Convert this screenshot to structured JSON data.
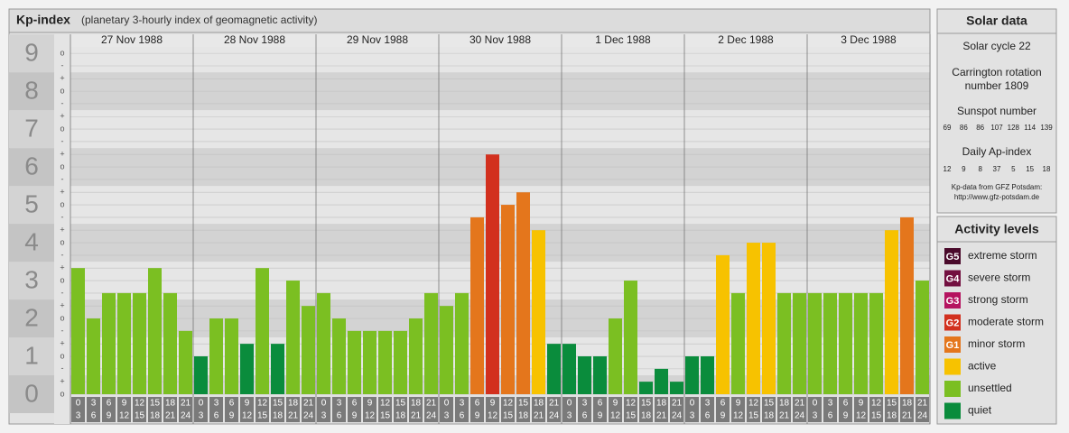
{
  "chart_data": {
    "type": "bar",
    "title": "Kp-index",
    "subtitle": "(planetary 3-hourly index of geomagnetic activity)",
    "ylim": [
      0,
      9.17
    ],
    "yticks": [
      0,
      1,
      2,
      3,
      4,
      5,
      6,
      7,
      8,
      9
    ],
    "minor_yticks": [
      {
        "value": 0,
        "label": "o"
      },
      {
        "value": 0.33,
        "label": "+"
      },
      {
        "value": 0.67,
        "label": "-"
      },
      {
        "value": 1,
        "label": "o"
      },
      {
        "value": 1.33,
        "label": "+"
      },
      {
        "value": 1.67,
        "label": "-"
      },
      {
        "value": 2,
        "label": "o"
      },
      {
        "value": 2.33,
        "label": "+"
      },
      {
        "value": 2.67,
        "label": "-"
      },
      {
        "value": 3,
        "label": "o"
      },
      {
        "value": 3.33,
        "label": "+"
      },
      {
        "value": 3.67,
        "label": "-"
      },
      {
        "value": 4,
        "label": "o"
      },
      {
        "value": 4.33,
        "label": "+"
      },
      {
        "value": 4.67,
        "label": "-"
      },
      {
        "value": 5,
        "label": "o"
      },
      {
        "value": 5.33,
        "label": "+"
      },
      {
        "value": 5.67,
        "label": "-"
      },
      {
        "value": 6,
        "label": "o"
      },
      {
        "value": 6.33,
        "label": "+"
      },
      {
        "value": 6.67,
        "label": "-"
      },
      {
        "value": 7,
        "label": "o"
      },
      {
        "value": 7.33,
        "label": "+"
      },
      {
        "value": 7.67,
        "label": "-"
      },
      {
        "value": 8,
        "label": "o"
      },
      {
        "value": 8.33,
        "label": "+"
      },
      {
        "value": 8.67,
        "label": "-"
      },
      {
        "value": 9,
        "label": "o"
      }
    ],
    "grid": true,
    "hours": [
      [
        0,
        3
      ],
      [
        3,
        6
      ],
      [
        6,
        9
      ],
      [
        9,
        12
      ],
      [
        12,
        15
      ],
      [
        15,
        18
      ],
      [
        18,
        21
      ],
      [
        21,
        24
      ]
    ],
    "days": [
      {
        "date": "27 Nov 1988",
        "values": [
          3.33,
          2,
          2.67,
          2.67,
          2.67,
          3.33,
          2.67,
          1.67
        ],
        "colors": [
          "#7bbf22",
          "#7bbf22",
          "#7bbf22",
          "#7bbf22",
          "#7bbf22",
          "#7bbf22",
          "#7bbf22",
          "#7bbf22"
        ]
      },
      {
        "date": "28 Nov 1988",
        "values": [
          1,
          2,
          2,
          1.33,
          3.33,
          1.33,
          3,
          2.33
        ],
        "colors": [
          "#0a8c3c",
          "#7bbf22",
          "#7bbf22",
          "#0a8c3c",
          "#7bbf22",
          "#0a8c3c",
          "#7bbf22",
          "#7bbf22"
        ]
      },
      {
        "date": "29 Nov 1988",
        "values": [
          2.67,
          2,
          1.67,
          1.67,
          1.67,
          1.67,
          2,
          2.67
        ],
        "colors": [
          "#7bbf22",
          "#7bbf22",
          "#7bbf22",
          "#7bbf22",
          "#7bbf22",
          "#7bbf22",
          "#7bbf22",
          "#7bbf22"
        ]
      },
      {
        "date": "30 Nov 1988",
        "values": [
          2.33,
          2.67,
          4.67,
          6.33,
          5,
          5.33,
          4.33,
          1.33
        ],
        "colors": [
          "#7bbf22",
          "#7bbf22",
          "#e4761c",
          "#d2301e",
          "#e4761c",
          "#e4761c",
          "#f7c200",
          "#0a8c3c"
        ]
      },
      {
        "date": "1 Dec 1988",
        "values": [
          1.33,
          1,
          1,
          2,
          3,
          0.33,
          0.67,
          0.33
        ],
        "colors": [
          "#0a8c3c",
          "#0a8c3c",
          "#0a8c3c",
          "#7bbf22",
          "#7bbf22",
          "#0a8c3c",
          "#0a8c3c",
          "#0a8c3c"
        ]
      },
      {
        "date": "2 Dec 1988",
        "values": [
          1,
          1,
          3.67,
          2.67,
          4,
          4,
          2.67,
          2.67
        ],
        "colors": [
          "#0a8c3c",
          "#0a8c3c",
          "#f7c200",
          "#7bbf22",
          "#f7c200",
          "#f7c200",
          "#7bbf22",
          "#7bbf22"
        ]
      },
      {
        "date": "3 Dec 1988",
        "values": [
          2.67,
          2.67,
          2.67,
          2.67,
          2.67,
          4.33,
          4.67,
          3
        ],
        "colors": [
          "#7bbf22",
          "#7bbf22",
          "#7bbf22",
          "#7bbf22",
          "#7bbf22",
          "#f7c200",
          "#e4761c",
          "#7bbf22"
        ]
      }
    ]
  },
  "solar_data": {
    "title": "Solar data",
    "cycle": "Solar cycle 22",
    "carrington": [
      "Carrington rotation",
      "number 1809"
    ],
    "sunspot_title": "Sunspot number",
    "sunspots": [
      69,
      86,
      86,
      107,
      128,
      114,
      139
    ],
    "ap_title": "Daily Ap-index",
    "ap": [
      12,
      9,
      8,
      37,
      5,
      15,
      18
    ],
    "source": [
      "Kp-data from GFZ Potsdam:",
      "http://www.gfz-potsdam.de"
    ]
  },
  "activity_levels": {
    "title": "Activity levels",
    "items": [
      {
        "badge": "G5",
        "label": "extreme storm",
        "color": "#4a0a2b"
      },
      {
        "badge": "G4",
        "label": "severe storm",
        "color": "#731040"
      },
      {
        "badge": "G3",
        "label": "strong storm",
        "color": "#b5135f"
      },
      {
        "badge": "G2",
        "label": "moderate storm",
        "color": "#d2301e"
      },
      {
        "badge": "G1",
        "label": "minor storm",
        "color": "#e4761c"
      },
      {
        "label": "active",
        "color": "#f7c200"
      },
      {
        "label": "unsettled",
        "color": "#7bbf22"
      },
      {
        "label": "quiet",
        "color": "#0a8c3c"
      }
    ]
  }
}
